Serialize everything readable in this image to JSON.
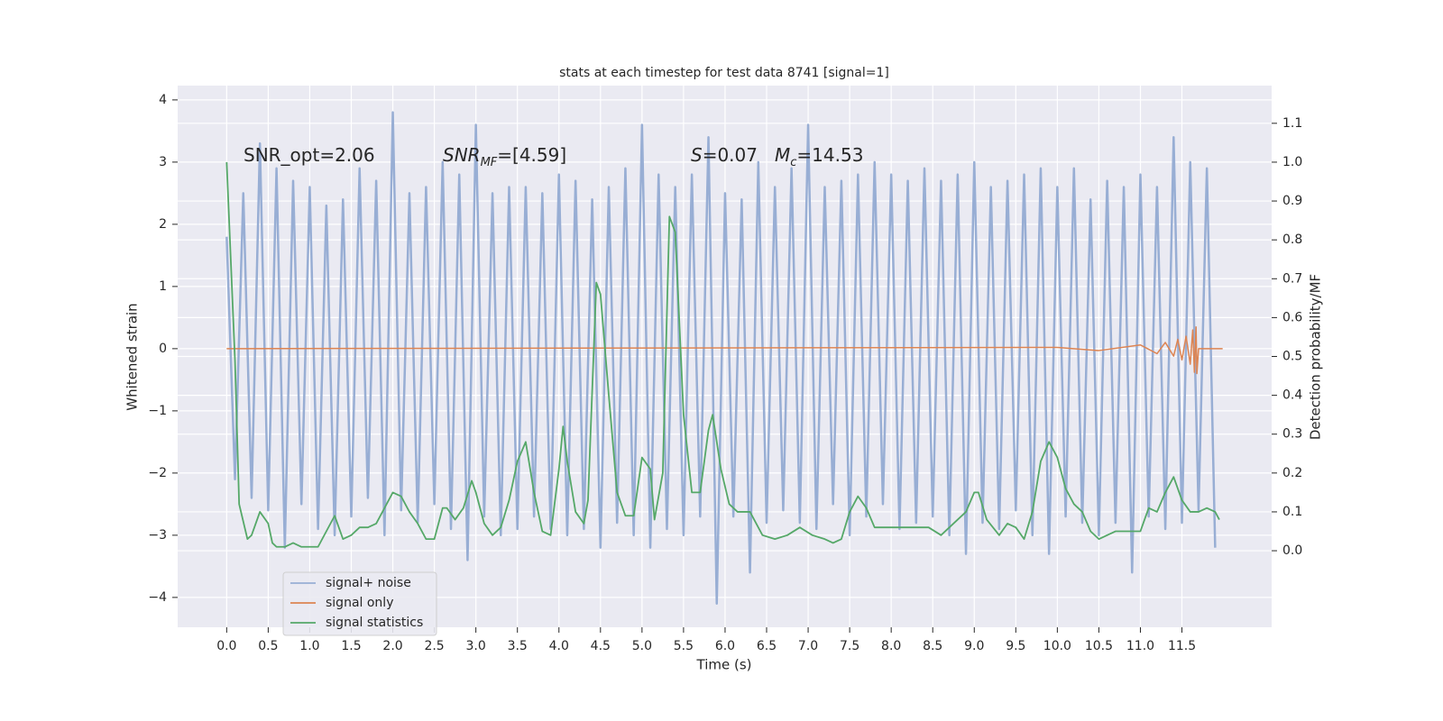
{
  "chart_data": {
    "type": "line",
    "title": "stats at each timestep for test data 8741 [signal=1]",
    "xlabel": "Time (s)",
    "ylabel": "Whitened strain",
    "y2label": "Detection probability/MF",
    "xlim": [
      -0.59,
      12.58
    ],
    "ylim": [
      -4.48,
      4.23
    ],
    "y2lim": [
      -0.197,
      1.197
    ],
    "xticks": [
      {
        "value": 0,
        "label": "0.0"
      },
      {
        "value": 0.5,
        "label": "0.5"
      },
      {
        "value": 1,
        "label": "1.0"
      },
      {
        "value": 1.5,
        "label": "1.5"
      },
      {
        "value": 2,
        "label": "2.0"
      },
      {
        "value": 2.5,
        "label": "2.5"
      },
      {
        "value": 3,
        "label": "3.0"
      },
      {
        "value": 3.5,
        "label": "3.5"
      },
      {
        "value": 4,
        "label": "4.0"
      },
      {
        "value": 4.5,
        "label": "4.5"
      },
      {
        "value": 5,
        "label": "5.0"
      },
      {
        "value": 5.5,
        "label": "5.5"
      },
      {
        "value": 6,
        "label": "6.0"
      },
      {
        "value": 6.5,
        "label": "6.5"
      },
      {
        "value": 7,
        "label": "7.0"
      },
      {
        "value": 7.5,
        "label": "7.5"
      },
      {
        "value": 8,
        "label": "8.0"
      },
      {
        "value": 8.5,
        "label": "8.5"
      },
      {
        "value": 9,
        "label": "9.0"
      },
      {
        "value": 9.5,
        "label": "9.5"
      },
      {
        "value": 10,
        "label": "10.0"
      },
      {
        "value": 10.5,
        "label": "10.5"
      },
      {
        "value": 11,
        "label": "11.0"
      },
      {
        "value": 11.5,
        "label": "11.5"
      }
    ],
    "yticks": [
      {
        "value": -4,
        "label": "−4"
      },
      {
        "value": -3,
        "label": "−3"
      },
      {
        "value": -2,
        "label": "−2"
      },
      {
        "value": -1,
        "label": "−1"
      },
      0,
      1,
      2,
      3,
      4
    ],
    "y2ticks": [
      {
        "value": 0,
        "label": "0.0"
      },
      {
        "value": 0.1,
        "label": "0.1"
      },
      {
        "value": 0.2,
        "label": "0.2"
      },
      {
        "value": 0.3,
        "label": "0.3"
      },
      {
        "value": 0.4,
        "label": "0.4"
      },
      {
        "value": 0.5,
        "label": "0.5"
      },
      {
        "value": 0.6,
        "label": "0.6"
      },
      {
        "value": 0.7,
        "label": "0.7"
      },
      {
        "value": 0.8,
        "label": "0.8"
      },
      {
        "value": 0.9,
        "label": "0.9"
      },
      {
        "value": 1,
        "label": "1.0"
      },
      {
        "value": 1.1,
        "label": "1.1"
      }
    ],
    "grid": true,
    "legend": "lower left",
    "annotations": [
      {
        "parts": [
          {
            "text": "SNR_opt=2.06",
            "style": "normal"
          }
        ]
      },
      {
        "parts": [
          {
            "text": "SNR",
            "style": "italic"
          },
          {
            "text": "MF",
            "style": "sub"
          },
          {
            "text": "=[4.59]",
            "style": "normal"
          }
        ]
      },
      {
        "parts": [
          {
            "text": "S",
            "style": "italic"
          },
          {
            "text": "=0.07",
            "style": "normal"
          }
        ]
      },
      {
        "parts": [
          {
            "text": "M",
            "style": "italic"
          },
          {
            "text": "c",
            "style": "sub"
          },
          {
            "text": "=14.53",
            "style": "normal"
          }
        ]
      }
    ],
    "series": [
      {
        "name": "signal+ noise",
        "color": "#98aed4",
        "x": [
          0,
          0.1,
          0.2,
          0.3,
          0.4,
          0.5,
          0.6,
          0.7,
          0.8,
          0.9,
          1,
          1.1,
          1.2,
          1.3,
          1.4,
          1.5,
          1.6,
          1.7,
          1.8,
          1.9,
          2,
          2.1,
          2.2,
          2.3,
          2.4,
          2.5,
          2.6,
          2.7,
          2.8,
          2.9,
          3,
          3.1,
          3.2,
          3.3,
          3.4,
          3.5,
          3.6,
          3.7,
          3.8,
          3.9,
          4,
          4.1,
          4.2,
          4.3,
          4.4,
          4.5,
          4.6,
          4.7,
          4.8,
          4.9,
          5,
          5.1,
          5.2,
          5.3,
          5.4,
          5.5,
          5.6,
          5.7,
          5.8,
          5.9,
          6,
          6.1,
          6.2,
          6.3,
          6.4,
          6.5,
          6.6,
          6.7,
          6.8,
          6.9,
          7,
          7.1,
          7.2,
          7.3,
          7.4,
          7.5,
          7.6,
          7.7,
          7.8,
          7.9,
          8,
          8.1,
          8.2,
          8.3,
          8.4,
          8.5,
          8.6,
          8.7,
          8.8,
          8.9,
          9,
          9.1,
          9.2,
          9.3,
          9.4,
          9.5,
          9.6,
          9.7,
          9.8,
          9.9,
          10,
          10.1,
          10.2,
          10.3,
          10.4,
          10.5,
          10.6,
          10.7,
          10.8,
          10.9,
          11,
          11.1,
          11.2,
          11.3,
          11.4,
          11.5,
          11.6,
          11.7,
          11.8,
          11.9
        ],
        "values": [
          1.8,
          -2.1,
          2.5,
          -2.4,
          3.3,
          -2.6,
          2.9,
          -3.2,
          2.7,
          -2.5,
          2.6,
          -2.9,
          2.3,
          -3.0,
          2.4,
          -2.7,
          2.9,
          -2.4,
          2.7,
          -3.0,
          3.8,
          -2.6,
          2.5,
          -2.8,
          2.6,
          -2.5,
          3.0,
          -2.9,
          2.8,
          -3.4,
          3.6,
          -2.7,
          2.5,
          -3.0,
          2.6,
          -2.9,
          2.6,
          -2.7,
          2.5,
          -2.9,
          2.8,
          -3.0,
          2.7,
          -2.9,
          2.4,
          -3.2,
          2.6,
          -2.8,
          2.9,
          -3.0,
          3.6,
          -3.2,
          2.8,
          -2.9,
          2.6,
          -3.0,
          2.8,
          -2.7,
          3.4,
          -4.1,
          2.5,
          -2.7,
          2.4,
          -3.6,
          3.0,
          -2.8,
          2.6,
          -2.6,
          2.9,
          -2.8,
          3.6,
          -2.9,
          2.6,
          -2.5,
          2.7,
          -3.0,
          2.8,
          -2.7,
          3.0,
          -2.5,
          2.8,
          -2.9,
          2.7,
          -2.8,
          2.9,
          -2.7,
          2.7,
          -3.0,
          2.8,
          -3.3,
          3.0,
          -2.8,
          2.6,
          -2.9,
          2.7,
          -2.6,
          2.8,
          -3.0,
          2.9,
          -3.3,
          2.6,
          -2.7,
          2.9,
          -2.8,
          2.4,
          -3.0,
          2.7,
          -2.8,
          2.6,
          -3.6,
          2.8,
          -2.7,
          2.6,
          -2.9,
          3.4,
          -2.8,
          3.0,
          -2.6,
          2.9,
          -3.2
        ]
      },
      {
        "name": "signal only",
        "color": "#dd8452",
        "x": [
          0,
          10,
          10.5,
          11,
          11.2,
          11.3,
          11.4,
          11.45,
          11.5,
          11.55,
          11.6,
          11.63,
          11.65,
          11.67,
          11.68,
          11.7,
          11.99
        ],
        "values": [
          0,
          0.02,
          -0.03,
          0.06,
          -0.08,
          0.1,
          -0.12,
          0.15,
          -0.18,
          0.2,
          -0.25,
          0.3,
          -0.38,
          0.35,
          -0.4,
          0,
          0
        ]
      },
      {
        "name": "signal statistics",
        "color": "#55a868",
        "axis": "y2",
        "x": [
          0,
          0.1,
          0.15,
          0.25,
          0.3,
          0.4,
          0.5,
          0.55,
          0.6,
          0.7,
          0.8,
          0.9,
          1,
          1.1,
          1.2,
          1.3,
          1.35,
          1.4,
          1.5,
          1.6,
          1.7,
          1.8,
          1.9,
          2,
          2.1,
          2.2,
          2.3,
          2.4,
          2.5,
          2.6,
          2.65,
          2.75,
          2.85,
          2.95,
          3,
          3.1,
          3.2,
          3.3,
          3.4,
          3.5,
          3.6,
          3.7,
          3.8,
          3.9,
          4,
          4.05,
          4.1,
          4.2,
          4.3,
          4.35,
          4.45,
          4.5,
          4.6,
          4.7,
          4.8,
          4.9,
          5,
          5.1,
          5.15,
          5.25,
          5.33,
          5.4,
          5.5,
          5.6,
          5.7,
          5.8,
          5.85,
          5.95,
          6.05,
          6.15,
          6.3,
          6.45,
          6.6,
          6.75,
          6.9,
          7.05,
          7.2,
          7.3,
          7.4,
          7.5,
          7.6,
          7.7,
          7.8,
          7.9,
          8,
          8.1,
          8.3,
          8.45,
          8.6,
          8.8,
          8.9,
          9,
          9.05,
          9.15,
          9.3,
          9.4,
          9.5,
          9.6,
          9.7,
          9.8,
          9.9,
          10,
          10.1,
          10.2,
          10.3,
          10.4,
          10.5,
          10.6,
          10.7,
          10.9,
          11,
          11.05,
          11.1,
          11.2,
          11.3,
          11.4,
          11.5,
          11.6,
          11.7,
          11.8,
          11.9,
          11.95
        ],
        "values": [
          1.0,
          0.49,
          0.12,
          0.03,
          0.04,
          0.1,
          0.07,
          0.02,
          0.01,
          0.01,
          0.02,
          0.01,
          0.01,
          0.01,
          0.05,
          0.09,
          0.06,
          0.03,
          0.04,
          0.06,
          0.06,
          0.07,
          0.11,
          0.15,
          0.14,
          0.1,
          0.07,
          0.03,
          0.03,
          0.11,
          0.11,
          0.08,
          0.11,
          0.18,
          0.15,
          0.07,
          0.04,
          0.06,
          0.13,
          0.23,
          0.28,
          0.15,
          0.05,
          0.04,
          0.21,
          0.32,
          0.23,
          0.1,
          0.07,
          0.13,
          0.69,
          0.66,
          0.4,
          0.15,
          0.09,
          0.09,
          0.24,
          0.21,
          0.08,
          0.2,
          0.86,
          0.82,
          0.35,
          0.15,
          0.15,
          0.31,
          0.35,
          0.21,
          0.12,
          0.1,
          0.1,
          0.04,
          0.03,
          0.04,
          0.06,
          0.04,
          0.03,
          0.02,
          0.03,
          0.1,
          0.14,
          0.11,
          0.06,
          0.06,
          0.06,
          0.06,
          0.06,
          0.06,
          0.04,
          0.08,
          0.1,
          0.15,
          0.15,
          0.08,
          0.04,
          0.07,
          0.06,
          0.03,
          0.1,
          0.23,
          0.28,
          0.24,
          0.16,
          0.12,
          0.1,
          0.05,
          0.03,
          0.04,
          0.05,
          0.05,
          0.05,
          0.08,
          0.11,
          0.1,
          0.15,
          0.19,
          0.13,
          0.1,
          0.1,
          0.11,
          0.1,
          0.08
        ]
      }
    ]
  }
}
